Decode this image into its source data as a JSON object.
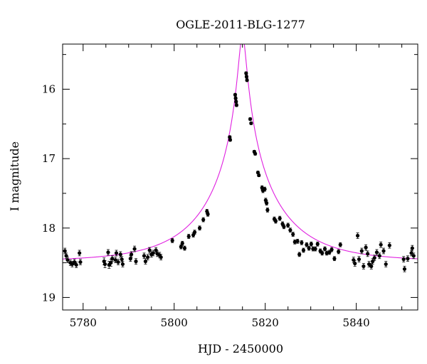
{
  "chart_data": {
    "type": "scatter",
    "title": "OGLE-2011-BLG-1277",
    "xlabel": "HJD - 2450000",
    "ylabel": "I magnitude",
    "xlim": [
      5775.5,
      5853.5
    ],
    "ylim": [
      19.18,
      15.35
    ],
    "y_inverted": true,
    "grid": false,
    "xticks": [
      5780,
      5800,
      5820,
      5840
    ],
    "xtick_labels": [
      "5780",
      "5800",
      "5820",
      "5840"
    ],
    "yticks": [
      16,
      17,
      18,
      19
    ],
    "ytick_labels": [
      "16",
      "17",
      "18",
      "19"
    ],
    "colors": {
      "points": "#000000",
      "model": "#e020e0"
    },
    "model": {
      "t0": 5815.0,
      "baseline_mag": 18.48,
      "u0": 0.05,
      "tE": 16.0
    },
    "points": [
      [
        5776.0,
        18.33,
        0.04
      ],
      [
        5776.3,
        18.4,
        0.04
      ],
      [
        5776.6,
        18.46,
        0.04
      ],
      [
        5777.2,
        18.5,
        0.04
      ],
      [
        5777.6,
        18.52,
        0.04
      ],
      [
        5778.1,
        18.49,
        0.04
      ],
      [
        5778.5,
        18.53,
        0.04
      ],
      [
        5779.2,
        18.36,
        0.04
      ],
      [
        5779.4,
        18.49,
        0.04
      ],
      [
        5784.6,
        18.48,
        0.05
      ],
      [
        5784.8,
        18.52,
        0.05
      ],
      [
        5785.5,
        18.35,
        0.04
      ],
      [
        5785.7,
        18.53,
        0.05
      ],
      [
        5786.1,
        18.5,
        0.05
      ],
      [
        5786.4,
        18.44,
        0.04
      ],
      [
        5787.1,
        18.46,
        0.04
      ],
      [
        5787.3,
        18.36,
        0.04
      ],
      [
        5787.7,
        18.49,
        0.04
      ],
      [
        5788.2,
        18.38,
        0.04
      ],
      [
        5788.5,
        18.45,
        0.04
      ],
      [
        5788.7,
        18.52,
        0.04
      ],
      [
        5790.4,
        18.44,
        0.04
      ],
      [
        5790.6,
        18.38,
        0.04
      ],
      [
        5791.3,
        18.3,
        0.04
      ],
      [
        5791.6,
        18.48,
        0.04
      ],
      [
        5793.4,
        18.4,
        0.04
      ],
      [
        5793.7,
        18.48,
        0.04
      ],
      [
        5794.2,
        18.42,
        0.04
      ],
      [
        5794.6,
        18.32,
        0.04
      ],
      [
        5795.0,
        18.38,
        0.04
      ],
      [
        5795.4,
        18.36,
        0.04
      ],
      [
        5796.0,
        18.32,
        0.04
      ],
      [
        5796.3,
        18.37,
        0.04
      ],
      [
        5796.8,
        18.39,
        0.04
      ],
      [
        5797.1,
        18.42,
        0.04
      ],
      [
        5799.6,
        18.18,
        0.03
      ],
      [
        5801.5,
        18.27,
        0.03
      ],
      [
        5801.8,
        18.22,
        0.03
      ],
      [
        5802.3,
        18.29,
        0.03
      ],
      [
        5803.2,
        18.12,
        0.03
      ],
      [
        5804.2,
        18.1,
        0.03
      ],
      [
        5804.5,
        18.06,
        0.03
      ],
      [
        5805.6,
        18.0,
        0.03
      ],
      [
        5806.4,
        17.88,
        0.03
      ],
      [
        5807.2,
        17.76,
        0.03
      ],
      [
        5807.4,
        17.8,
        0.03
      ],
      [
        5812.2,
        16.69,
        0.02
      ],
      [
        5812.3,
        16.73,
        0.02
      ],
      [
        5813.4,
        16.08,
        0.02
      ],
      [
        5813.5,
        16.13,
        0.02
      ],
      [
        5813.6,
        16.18,
        0.02
      ],
      [
        5813.7,
        16.23,
        0.02
      ],
      [
        5815.8,
        15.77,
        0.02
      ],
      [
        5815.9,
        15.82,
        0.02
      ],
      [
        5816.0,
        15.87,
        0.02
      ],
      [
        5816.7,
        16.43,
        0.02
      ],
      [
        5816.9,
        16.49,
        0.02
      ],
      [
        5817.6,
        16.9,
        0.02
      ],
      [
        5817.8,
        16.93,
        0.02
      ],
      [
        5818.4,
        17.2,
        0.02
      ],
      [
        5818.6,
        17.24,
        0.02
      ],
      [
        5819.3,
        17.42,
        0.03
      ],
      [
        5819.5,
        17.46,
        0.03
      ],
      [
        5819.9,
        17.44,
        0.03
      ],
      [
        5820.1,
        17.6,
        0.03
      ],
      [
        5820.3,
        17.64,
        0.03
      ],
      [
        5820.5,
        17.74,
        0.03
      ],
      [
        5822.0,
        17.87,
        0.03
      ],
      [
        5822.3,
        17.9,
        0.03
      ],
      [
        5823.2,
        17.86,
        0.03
      ],
      [
        5823.8,
        17.94,
        0.03
      ],
      [
        5824.1,
        17.98,
        0.03
      ],
      [
        5825.0,
        17.96,
        0.03
      ],
      [
        5825.5,
        18.03,
        0.03
      ],
      [
        5826.1,
        18.09,
        0.03
      ],
      [
        5826.5,
        18.2,
        0.03
      ],
      [
        5827.1,
        18.19,
        0.03
      ],
      [
        5827.5,
        18.38,
        0.03
      ],
      [
        5828.0,
        18.21,
        0.03
      ],
      [
        5828.4,
        18.32,
        0.03
      ],
      [
        5829.1,
        18.24,
        0.03
      ],
      [
        5829.6,
        18.29,
        0.03
      ],
      [
        5830.1,
        18.23,
        0.03
      ],
      [
        5830.5,
        18.3,
        0.03
      ],
      [
        5831.0,
        18.3,
        0.03
      ],
      [
        5831.5,
        18.23,
        0.03
      ],
      [
        5832.1,
        18.33,
        0.03
      ],
      [
        5832.5,
        18.36,
        0.03
      ],
      [
        5833.1,
        18.3,
        0.03
      ],
      [
        5833.5,
        18.36,
        0.03
      ],
      [
        5834.1,
        18.35,
        0.03
      ],
      [
        5834.6,
        18.31,
        0.03
      ],
      [
        5835.2,
        18.44,
        0.03
      ],
      [
        5836.1,
        18.34,
        0.03
      ],
      [
        5836.5,
        18.24,
        0.03
      ],
      [
        5839.4,
        18.46,
        0.04
      ],
      [
        5839.7,
        18.51,
        0.04
      ],
      [
        5840.3,
        18.11,
        0.04
      ],
      [
        5840.6,
        18.45,
        0.04
      ],
      [
        5841.2,
        18.33,
        0.04
      ],
      [
        5841.6,
        18.55,
        0.04
      ],
      [
        5842.1,
        18.28,
        0.04
      ],
      [
        5842.5,
        18.37,
        0.04
      ],
      [
        5842.8,
        18.52,
        0.04
      ],
      [
        5843.3,
        18.55,
        0.04
      ],
      [
        5843.6,
        18.48,
        0.04
      ],
      [
        5844.0,
        18.43,
        0.04
      ],
      [
        5844.5,
        18.35,
        0.04
      ],
      [
        5845.1,
        18.4,
        0.04
      ],
      [
        5845.4,
        18.24,
        0.04
      ],
      [
        5846.0,
        18.33,
        0.04
      ],
      [
        5846.5,
        18.52,
        0.04
      ],
      [
        5847.3,
        18.25,
        0.04
      ],
      [
        5850.4,
        18.45,
        0.04
      ],
      [
        5850.6,
        18.59,
        0.04
      ],
      [
        5851.3,
        18.44,
        0.04
      ],
      [
        5852.1,
        18.36,
        0.04
      ],
      [
        5852.3,
        18.29,
        0.04
      ],
      [
        5852.6,
        18.4,
        0.04
      ]
    ]
  }
}
